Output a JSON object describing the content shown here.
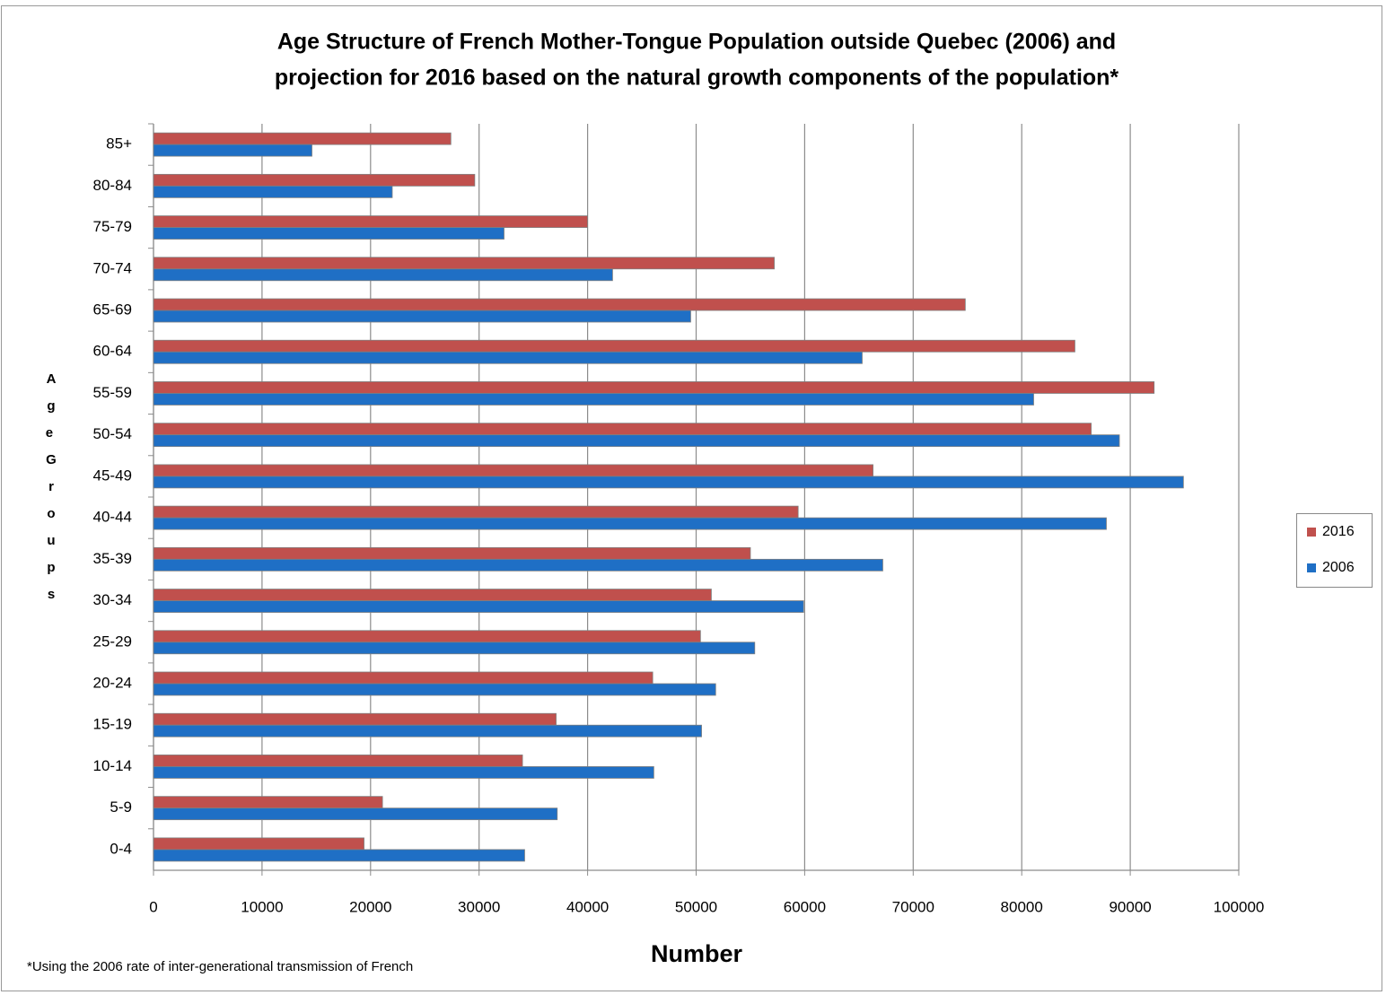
{
  "chart_data": {
    "type": "bar",
    "orientation": "horizontal",
    "title": [
      "Age Structure of French Mother-Tongue Population outside Quebec (2006) and",
      "projection for 2016 based on the natural growth components of the population*"
    ],
    "x_label": "Number",
    "y_label": "Age Groups",
    "footnote": "*Using the 2006 rate of inter-generational transmission of French",
    "categories": [
      "0-4",
      "5-9",
      "10-14",
      "15-19",
      "20-24",
      "25-29",
      "30-34",
      "35-39",
      "40-44",
      "45-49",
      "50-54",
      "55-59",
      "60-64",
      "65-69",
      "70-74",
      "75-79",
      "80-84",
      "85+"
    ],
    "series": [
      {
        "name": "2016",
        "color": "#c0504d",
        "values": [
          19400,
          21100,
          34000,
          37100,
          46000,
          50400,
          51400,
          55000,
          59400,
          66300,
          86400,
          92200,
          84900,
          74800,
          57200,
          40000,
          29600,
          27400
        ]
      },
      {
        "name": "2006",
        "color": "#1f6fc5",
        "values": [
          34200,
          37200,
          46100,
          50500,
          51800,
          55400,
          59900,
          67200,
          87800,
          94900,
          89000,
          81100,
          65300,
          49500,
          42300,
          32300,
          22000,
          14600
        ]
      }
    ],
    "xlim": [
      0,
      100000
    ],
    "xticks": [
      0,
      10000,
      20000,
      30000,
      40000,
      50000,
      60000,
      70000,
      80000,
      90000,
      100000
    ],
    "grid": true,
    "legend": "right"
  }
}
